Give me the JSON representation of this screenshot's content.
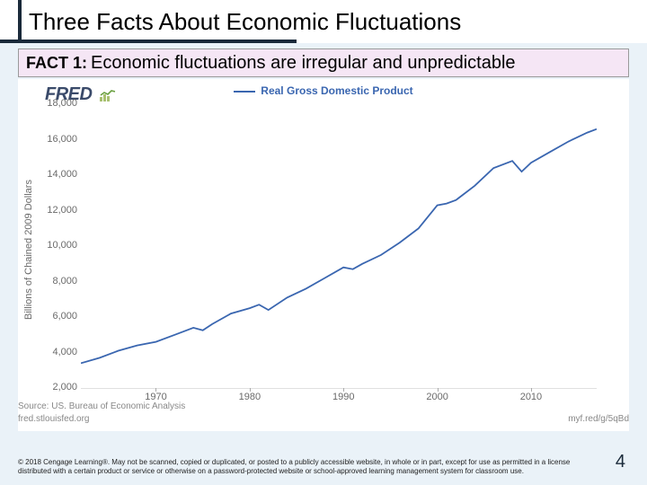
{
  "title": "Three Facts About Economic Fluctuations",
  "fact": {
    "label": "FACT 1:",
    "text": "Economic fluctuations are irregular and unpredictable"
  },
  "brand": "FRED",
  "legend": "Real Gross Domestic Product",
  "chart": {
    "type": "line",
    "ylabel": "Billions of Chained 2009 Dollars",
    "ylim": [
      2000,
      18000
    ],
    "ytick_step": 2000,
    "yticks": [
      2000,
      4000,
      6000,
      8000,
      10000,
      12000,
      14000,
      16000,
      18000
    ],
    "ytick_labels": [
      "2,000",
      "4,000",
      "6,000",
      "8,000",
      "10,000",
      "12,000",
      "14,000",
      "16,000",
      "18,000"
    ],
    "xlim": [
      1962,
      2017
    ],
    "xticks": [
      1970,
      1980,
      1990,
      2000,
      2010
    ],
    "line_color": "#3a66b0",
    "grid_color": "#e0e0e0",
    "background_color": "#ffffff",
    "recession_color": "#e6e6e6",
    "recessions": [
      [
        1969.9,
        1970.9
      ],
      [
        1973.8,
        1975.2
      ],
      [
        1980.0,
        1980.6
      ],
      [
        1981.6,
        1982.9
      ],
      [
        1990.6,
        1991.2
      ],
      [
        2001.2,
        2001.9
      ],
      [
        2007.9,
        2009.5
      ]
    ],
    "series": {
      "x": [
        1962,
        1964,
        1966,
        1968,
        1970,
        1972,
        1974,
        1975,
        1976,
        1978,
        1980,
        1981,
        1982,
        1984,
        1986,
        1988,
        1990,
        1991,
        1992,
        1994,
        1996,
        1998,
        2000,
        2001,
        2002,
        2004,
        2006,
        2008,
        2009,
        2010,
        2012,
        2014,
        2016,
        2017
      ],
      "y": [
        3400,
        3700,
        4100,
        4400,
        4600,
        5000,
        5400,
        5250,
        5600,
        6200,
        6500,
        6700,
        6400,
        7100,
        7600,
        8200,
        8800,
        8700,
        9000,
        9500,
        10200,
        11000,
        12300,
        12400,
        12600,
        13400,
        14400,
        14800,
        14200,
        14700,
        15300,
        15900,
        16400,
        16600
      ]
    },
    "title_fontsize": 12,
    "label_fontsize": 11
  },
  "source": {
    "left1": "Source: US. Bureau of Economic Analysis",
    "left2": "fred.stlouisfed.org",
    "right": "myf.red/g/5qBd"
  },
  "copyright": "© 2018 Cengage Learning®. May not be scanned, copied or duplicated, or posted to a publicly accessible website, in whole or in part, except for use as permitted in a license distributed with a certain product or service or otherwise on a password-protected website or school-approved learning management system for classroom use.",
  "page_number": "4",
  "colors": {
    "accent": "#1a2a3a",
    "slide_bg": "#eaf2f8",
    "fact_bg": "#f5e6f5"
  }
}
